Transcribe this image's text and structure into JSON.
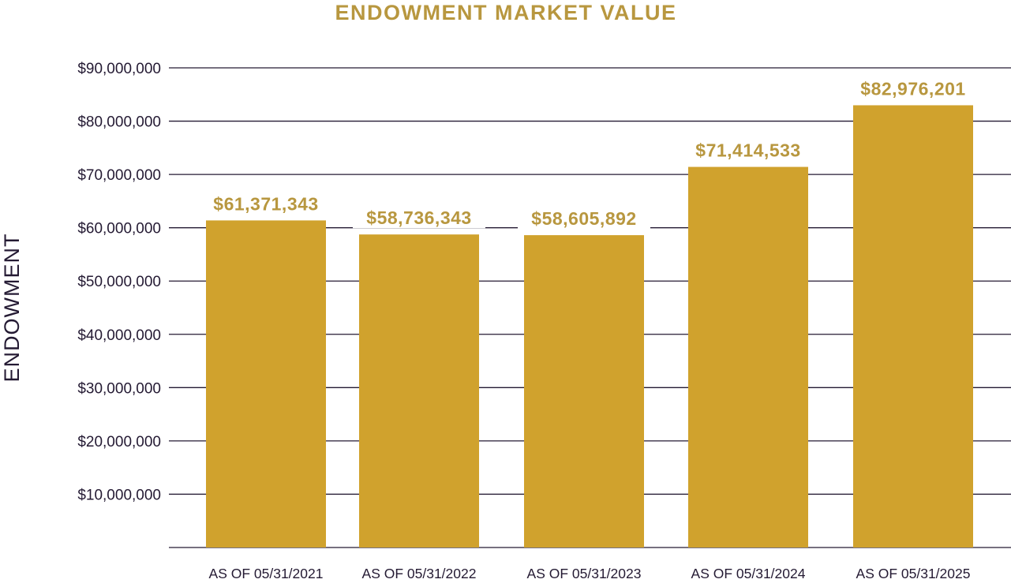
{
  "chart_data": {
    "type": "bar",
    "title": "ENDOWMENT MARKET VALUE",
    "xlabel": "",
    "ylabel": "ENDOWMENT",
    "categories": [
      "AS OF 05/31/2021",
      "AS OF 05/31/2022",
      "AS OF 05/31/2023",
      "AS OF 05/31/2024",
      "AS OF 05/31/2025"
    ],
    "values": [
      61371343,
      58736343,
      58605892,
      71414533,
      82976201
    ],
    "data_labels": [
      "$61,371,343",
      "$58,736,343",
      "$58,605,892",
      "$71,414,533",
      "$82,976,201"
    ],
    "y_ticks": [
      10000000,
      20000000,
      30000000,
      40000000,
      50000000,
      60000000,
      70000000,
      80000000,
      90000000
    ],
    "y_tick_labels": [
      "$10,000,000",
      "$20,000,000",
      "$30,000,000",
      "$40,000,000",
      "$50,000,000",
      "$60,000,000",
      "$70,000,000",
      "$80,000,000",
      "$90,000,000"
    ],
    "ylim": [
      0,
      90000000
    ],
    "grid": true,
    "legend": "none"
  },
  "colors": {
    "bar": "#D0A22D",
    "title": "#B8973F",
    "data_label": "#B8973F",
    "text": "#241A33",
    "grid": "#241A33",
    "background": "#FFFFFF"
  }
}
